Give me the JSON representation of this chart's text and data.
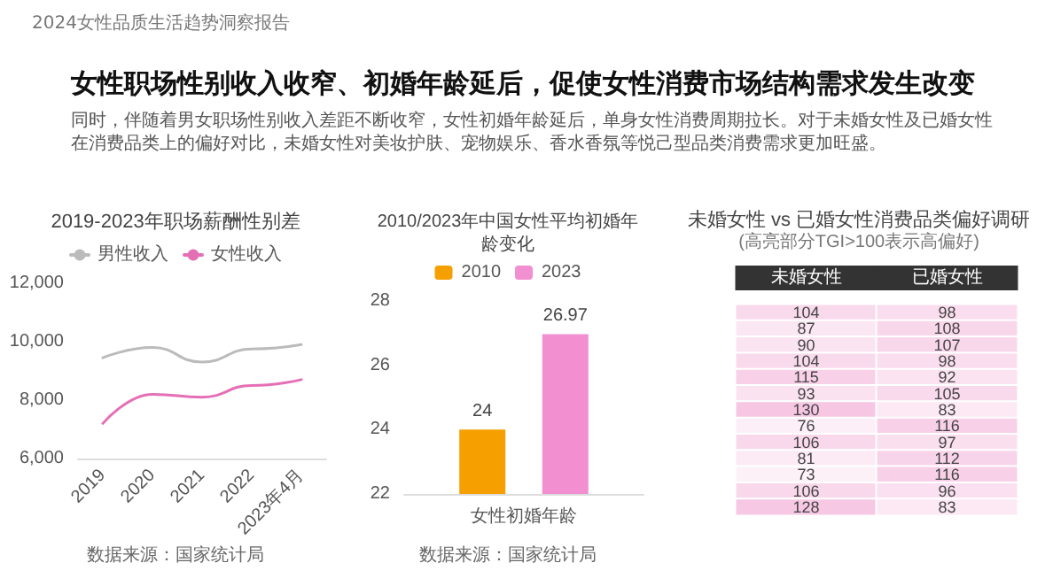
{
  "chart_data": [
    {
      "type": "other",
      "title": "女性职场性别收入收窄、初婚年龄延后，促使女性消费市场结构需求发生改变",
      "subtitle": "同时，伴随着男女职场性别收入差距不断收窄，女性初婚年龄延后，单身女性消费周期拉长。对于未婚女性及已婚女性在消费品类上的偏好对比，未婚女性对美妆护肤、宠物娱乐、香水香氛等悦己型品类消费需求更加旺盛。",
      "annotations": [
        "2024女性品质生活趋势洞察报告"
      ]
    },
    {
      "type": "line",
      "title": "2019-2023年职场薪酬性别差",
      "categories": [
        "2019",
        "2020",
        "2021",
        "2022",
        "2023年4月"
      ],
      "series": [
        {
          "name": "男性收入",
          "color": "#bbbbbb",
          "values": [
            9450,
            9800,
            9300,
            9750,
            9900
          ]
        },
        {
          "name": "女性收入",
          "color": "#e56fb5",
          "values": [
            7200,
            8200,
            8100,
            8500,
            8700
          ]
        }
      ],
      "ylim": [
        6000,
        12000
      ],
      "yticks": [
        {
          "value": 6000,
          "label": "6,000"
        },
        {
          "value": 8000,
          "label": "8,000"
        },
        {
          "value": 10000,
          "label": "10,000"
        },
        {
          "value": 12000,
          "label": "12,000"
        }
      ],
      "grid": false,
      "legend": "top",
      "marker": "none",
      "line_style": "solid",
      "annotations": [
        "数据来源：国家统计局"
      ]
    },
    {
      "type": "bar",
      "title": "2010/2023年中国女性平均初婚年龄变化",
      "categories": [
        "女性初婚年龄"
      ],
      "series": [
        {
          "name": "2010",
          "color": "#f5a000",
          "values": [
            24
          ]
        },
        {
          "name": "2023",
          "color": "#f28fd0",
          "values": [
            26.97
          ]
        }
      ],
      "ylim": [
        22,
        28
      ],
      "yticks": [
        22,
        24,
        26,
        28
      ],
      "grid": false,
      "legend": "top",
      "data_labels": true,
      "annotations": [
        "数据来源：国家统计局"
      ]
    },
    {
      "type": "heatmap",
      "title": "未婚女性 vs 已婚女性消费品类偏好调研",
      "subtitle": "(高亮部分TGI>100表示高偏好)",
      "categories": [
        "未婚女性",
        "已婚女性"
      ],
      "y_categories": [
        null,
        null,
        null,
        null,
        null,
        null,
        null,
        null,
        null,
        null,
        null,
        null,
        null
      ],
      "cells": [
        [
          104,
          98
        ],
        [
          87,
          108
        ],
        [
          90,
          107
        ],
        [
          104,
          98
        ],
        [
          115,
          92
        ],
        [
          93,
          105
        ],
        [
          130,
          83
        ],
        [
          76,
          116
        ],
        [
          106,
          97
        ],
        [
          81,
          112
        ],
        [
          73,
          116
        ],
        [
          106,
          96
        ],
        [
          128,
          83
        ]
      ],
      "cell_labels": [
        [
          "104",
          "98"
        ],
        [
          "87",
          "108"
        ],
        [
          "90",
          "107"
        ],
        [
          "104",
          "98"
        ],
        [
          "115",
          "92"
        ],
        [
          "93",
          "105"
        ],
        [
          "130",
          "83"
        ],
        [
          "76",
          "116"
        ],
        [
          "106",
          "97"
        ],
        [
          "81",
          "112"
        ],
        [
          "73",
          "116"
        ],
        [
          "106",
          "96"
        ],
        [
          "128",
          "83"
        ]
      ]
    }
  ]
}
